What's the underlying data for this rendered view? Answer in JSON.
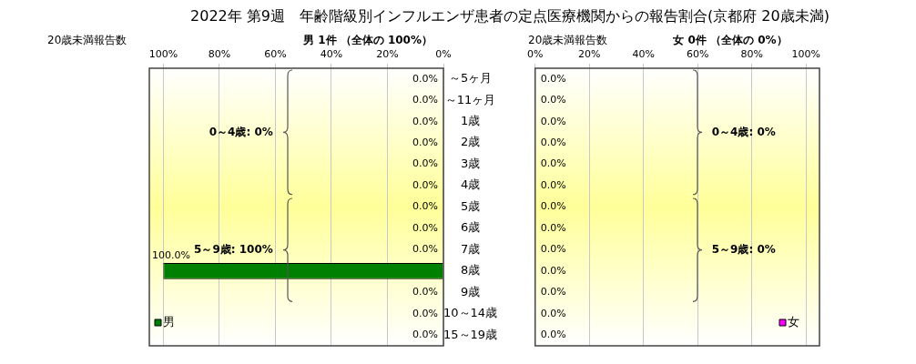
{
  "chart_data": [
    {
      "type": "bar",
      "orientation": "horizontal",
      "title": "2022年 第9週　年齢階級別インフルエンザ患者の定点医療機関からの報告割合(京都府 20歳未満)",
      "subtitle": "男 1件 （全体の 100%）",
      "xlabel": "20歳未満報告数",
      "categories": [
        "～5ヶ月",
        "～11ヶ月",
        "1歳",
        "2歳",
        "3歳",
        "4歳",
        "5歳",
        "6歳",
        "7歳",
        "8歳",
        "9歳",
        "10～14歳",
        "15～19歳"
      ],
      "series": [
        {
          "name": "男",
          "color": "#008000",
          "values": [
            0,
            0,
            0,
            0,
            0,
            0,
            0,
            0,
            0,
            100,
            0,
            0,
            0
          ],
          "value_labels": [
            "0.0%",
            "0.0%",
            "0.0%",
            "0.0%",
            "0.0%",
            "0.0%",
            "0.0%",
            "0.0%",
            "0.0%",
            "100.0%",
            "0.0%",
            "0.0%",
            "0.0%"
          ]
        }
      ],
      "xlim": [
        105,
        0
      ],
      "xticks": [
        {
          "value": 100,
          "label": "100%"
        },
        {
          "value": 80,
          "label": "80%"
        },
        {
          "value": 60,
          "label": "60%"
        },
        {
          "value": 40,
          "label": "40%"
        },
        {
          "value": 20,
          "label": "20%"
        },
        {
          "value": 0,
          "label": "0%"
        }
      ],
      "grid": "x",
      "legend": "bottom left",
      "annotations": [
        "0～4歳: 0%",
        "5～9歳: 100%"
      ]
    },
    {
      "type": "bar",
      "orientation": "horizontal",
      "title": "女 0件 （全体の 0%）",
      "xlabel": "20歳未満報告数",
      "categories": [
        null,
        null,
        null,
        null,
        null,
        null,
        null,
        null,
        null,
        null,
        null,
        null,
        null
      ],
      "series": [
        {
          "name": "女",
          "color": "#ff00ff",
          "values": [
            0,
            0,
            0,
            0,
            0,
            0,
            0,
            0,
            0,
            0,
            0,
            0,
            0
          ],
          "value_labels": [
            "0.0%",
            "0.0%",
            "0.0%",
            "0.0%",
            "0.0%",
            "0.0%",
            "0.0%",
            "0.0%",
            "0.0%",
            "0.0%",
            "0.0%",
            "0.0%",
            "0.0%"
          ]
        }
      ],
      "xlim": [
        0,
        105
      ],
      "xticks": [
        {
          "value": 0,
          "label": "0%"
        },
        {
          "value": 20,
          "label": "20%"
        },
        {
          "value": 40,
          "label": "40%"
        },
        {
          "value": 60,
          "label": "60%"
        },
        {
          "value": 80,
          "label": "80%"
        },
        {
          "value": 100,
          "label": "100%"
        }
      ],
      "grid": "x",
      "tick_labels": "x",
      "legend": "bottom right",
      "annotations": [
        "0～4歳: 0%",
        "5～9歳: 0%"
      ]
    }
  ]
}
